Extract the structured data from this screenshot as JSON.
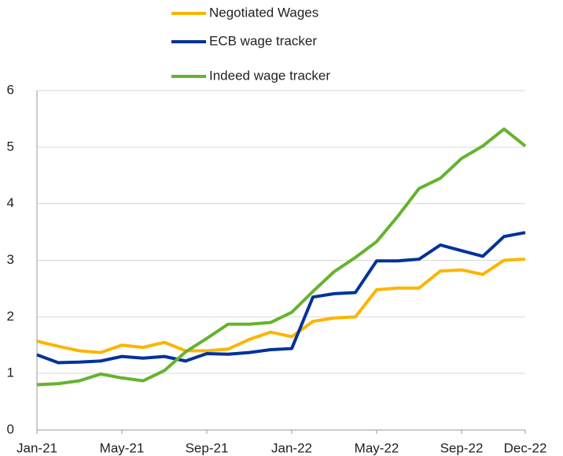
{
  "chart_data": {
    "type": "line",
    "categories": [
      "Jan-21",
      null,
      null,
      null,
      "May-21",
      null,
      null,
      null,
      "Sep-21",
      null,
      null,
      null,
      "Jan-22",
      null,
      null,
      null,
      "May-22",
      null,
      null,
      null,
      "Sep-22",
      null,
      null,
      "Dec-22"
    ],
    "series": [
      {
        "name": "Negotiated Wages",
        "color": "#fbb500",
        "values": [
          1.57,
          1.48,
          1.4,
          1.37,
          1.5,
          1.46,
          1.55,
          1.4,
          1.4,
          1.43,
          1.6,
          1.73,
          1.65,
          1.92,
          1.98,
          2.0,
          2.48,
          2.51,
          2.51,
          2.81,
          2.83,
          2.75,
          3.0,
          3.02
        ]
      },
      {
        "name": "ECB wage tracker",
        "color": "#003299",
        "values": [
          1.33,
          1.19,
          1.2,
          1.22,
          1.3,
          1.27,
          1.3,
          1.22,
          1.35,
          1.34,
          1.37,
          1.42,
          1.44,
          2.35,
          2.41,
          2.43,
          2.99,
          2.99,
          3.02,
          3.27,
          3.17,
          3.07,
          3.42,
          3.49
        ]
      },
      {
        "name": "Indeed wage tracker",
        "color": "#65b32e",
        "values": [
          0.8,
          0.82,
          0.87,
          0.99,
          0.92,
          0.87,
          1.05,
          1.38,
          1.62,
          1.87,
          1.87,
          1.9,
          2.08,
          2.45,
          2.8,
          3.05,
          3.33,
          3.78,
          4.27,
          4.45,
          4.8,
          5.02,
          5.32,
          5.02
        ]
      }
    ],
    "ylim": [
      0,
      6
    ],
    "yticks": [
      0,
      1,
      2,
      3,
      4,
      5,
      6
    ],
    "grid": true
  }
}
